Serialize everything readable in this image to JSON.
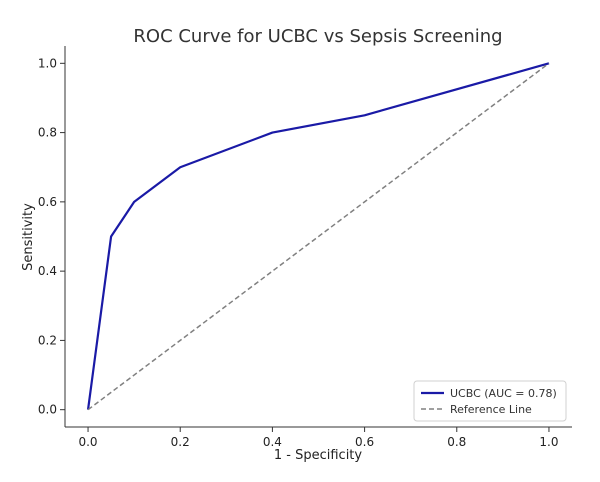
{
  "chart_data": {
    "type": "line",
    "title": "ROC Curve for UCBC vs Sepsis Screening",
    "xlabel": "1 - Specificity",
    "ylabel": "Sensitivity",
    "xlim": [
      -0.05,
      1.05
    ],
    "ylim": [
      -0.05,
      1.05
    ],
    "xticks": [
      0.0,
      0.2,
      0.4,
      0.6,
      0.8,
      1.0
    ],
    "yticks": [
      0.0,
      0.2,
      0.4,
      0.6,
      0.8,
      1.0
    ],
    "xtick_labels": [
      "0.0",
      "0.2",
      "0.4",
      "0.6",
      "0.8",
      "1.0"
    ],
    "ytick_labels": [
      "0.0",
      "0.2",
      "0.4",
      "0.6",
      "0.8",
      "1.0"
    ],
    "grid": false,
    "legend_position": "lower-right",
    "series": [
      {
        "name": "UCBC (AUC = 0.78)",
        "style": "solid",
        "color": "#1a1aa6",
        "x": [
          0.0,
          0.05,
          0.1,
          0.2,
          0.4,
          0.6,
          1.0
        ],
        "y": [
          0.0,
          0.5,
          0.6,
          0.7,
          0.8,
          0.85,
          1.0
        ]
      },
      {
        "name": "Reference Line",
        "style": "dashed",
        "color": "#808080",
        "x": [
          0.0,
          1.0
        ],
        "y": [
          0.0,
          1.0
        ]
      }
    ]
  }
}
